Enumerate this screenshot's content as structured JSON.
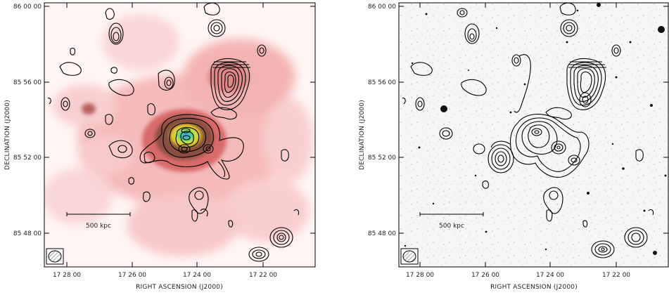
{
  "panels": [
    {
      "id": "left",
      "kind": "x-ray-with-radio-contours",
      "y_ticks": [
        "86 00 00",
        "85 56 00",
        "85 52 00",
        "85 48 00"
      ],
      "x_ticks": [
        "17 28 00",
        "17 26 00",
        "17 24 00",
        "17 22 00"
      ],
      "y_axis_title": "DECLINATION  (J2000)",
      "x_axis_title": "RIGHT ASCENSION  (J2000)",
      "scale_bar_label": "500 kpc"
    },
    {
      "id": "right",
      "kind": "optical-with-radio-contours",
      "y_ticks": [
        "86 00 00",
        "85 56 00",
        "85 52 00",
        "85 48 00"
      ],
      "x_ticks": [
        "17 28 00",
        "17 26 00",
        "17 24 00",
        "17 22 00"
      ],
      "y_axis_title": "DECLINATION  (J2000)",
      "x_axis_title": "RIGHT ASCENSION  (J2000)",
      "scale_bar_label": "500 kpc"
    }
  ]
}
